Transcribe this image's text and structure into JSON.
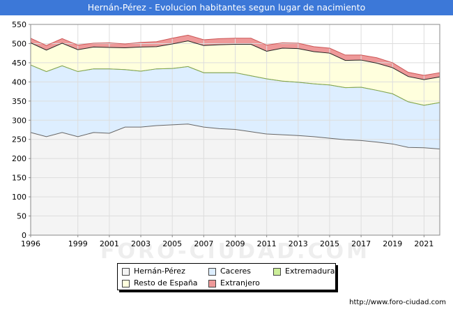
{
  "header": {
    "title": "Hernán-Pérez - Evolucion habitantes segun lugar de nacimiento"
  },
  "footer": {
    "source": "http://www.foro-ciudad.com"
  },
  "watermark": "FORO-CIUDAD.COM",
  "chart_data": {
    "type": "area",
    "stacked": true,
    "title": "Hernán-Pérez - Evolucion habitantes segun lugar de nacimiento",
    "xlabel": "",
    "ylabel": "",
    "xlim": [
      1996,
      2022
    ],
    "ylim": [
      0,
      550
    ],
    "x_ticks": [
      1996,
      1999,
      2001,
      2003,
      2005,
      2007,
      2009,
      2011,
      2013,
      2015,
      2017,
      2019,
      2021
    ],
    "y_ticks": [
      0,
      50,
      100,
      150,
      200,
      250,
      300,
      350,
      400,
      450,
      500,
      550
    ],
    "grid": true,
    "legend_position": "bottom",
    "x": [
      1996,
      1997,
      1998,
      1999,
      2000,
      2001,
      2002,
      2003,
      2004,
      2005,
      2006,
      2007,
      2008,
      2009,
      2010,
      2011,
      2012,
      2013,
      2014,
      2015,
      2016,
      2017,
      2018,
      2019,
      2020,
      2021,
      2022
    ],
    "series": [
      {
        "name": "Hernán-Pérez",
        "color": "#f4f4f4",
        "line": "#666666",
        "values": [
          268,
          257,
          268,
          257,
          268,
          266,
          282,
          282,
          286,
          288,
          290,
          282,
          278,
          276,
          270,
          264,
          262,
          260,
          257,
          253,
          249,
          247,
          243,
          238,
          229,
          228,
          225
        ]
      },
      {
        "name": "Caceres",
        "color": "#ddeeff",
        "line": "#7799cc",
        "values": [
          176,
          170,
          174,
          170,
          166,
          168,
          150,
          146,
          148,
          147,
          150,
          142,
          146,
          148,
          146,
          144,
          140,
          139,
          138,
          139,
          136,
          139,
          135,
          131,
          119,
          111,
          121
        ]
      },
      {
        "name": "Extremadura",
        "color": "#ccee99",
        "line": "#88aa44",
        "values": [
          0,
          0,
          0,
          0,
          0,
          0,
          0,
          0,
          0,
          0,
          0,
          0,
          0,
          0,
          0,
          0,
          0,
          0,
          0,
          0,
          0,
          0,
          0,
          0,
          0,
          0,
          0
        ]
      },
      {
        "name": "Resto de España",
        "color": "#ffffdd",
        "line": "#222222",
        "values": [
          58,
          56,
          59,
          57,
          57,
          56,
          57,
          63,
          58,
          64,
          67,
          71,
          73,
          74,
          82,
          72,
          86,
          88,
          84,
          83,
          71,
          71,
          71,
          68,
          66,
          67,
          67
        ]
      },
      {
        "name": "Extranjero",
        "color": "#ee9999",
        "line": "#cc5555",
        "values": [
          12,
          12,
          12,
          12,
          10,
          12,
          10,
          12,
          13,
          15,
          15,
          15,
          16,
          16,
          16,
          16,
          14,
          14,
          13,
          13,
          14,
          13,
          14,
          13,
          11,
          11,
          11
        ]
      }
    ]
  }
}
